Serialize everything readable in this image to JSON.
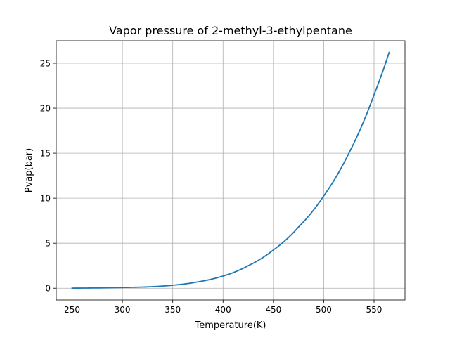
{
  "chart_data": {
    "type": "line",
    "title": "Vapor pressure of 2-methyl-3-ethylpentane",
    "xlabel": "Temperature(K)",
    "ylabel": "Pvap(bar)",
    "xlim": [
      234.25,
      580.75
    ],
    "ylim": [
      -1.31,
      27.5
    ],
    "x_ticks": [
      250,
      300,
      350,
      400,
      450,
      500,
      550
    ],
    "y_ticks": [
      0,
      5,
      10,
      15,
      20,
      25
    ],
    "grid": true,
    "colors": {
      "line": "#1f77b4",
      "grid": "#b0b0b0",
      "axes": "#000000"
    },
    "series": [
      {
        "x": [
          250,
          275,
          300,
          325,
          350,
          375,
          400,
          425,
          450,
          475,
          500,
          525,
          550,
          565
        ],
        "y": [
          0.01,
          0.03,
          0.08,
          0.15,
          0.33,
          0.7,
          1.35,
          2.5,
          4.25,
          6.8,
          10.25,
          15.0,
          21.5,
          26.2
        ]
      }
    ]
  }
}
